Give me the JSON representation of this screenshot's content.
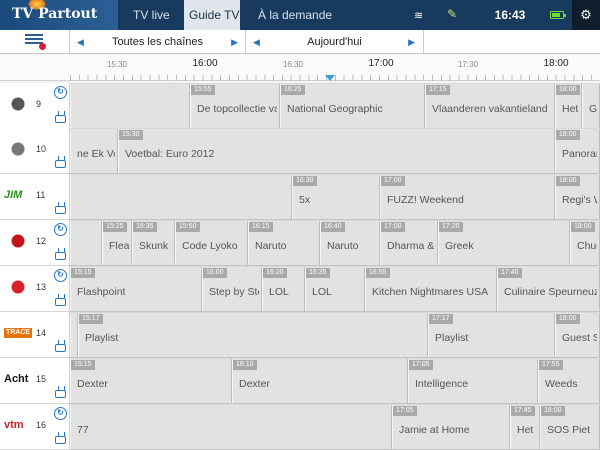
{
  "app": {
    "logo_text": "TV Partout"
  },
  "nav": {
    "tabs": [
      {
        "label": "TV live"
      },
      {
        "label": "Guide TV"
      },
      {
        "label": "À la demande"
      }
    ]
  },
  "status": {
    "time": "16:43",
    "battery_level": 0.8
  },
  "filters": {
    "channel_filter": "Toutes les chaînes",
    "day_filter": "Aujourd'hui"
  },
  "timeline": {
    "labels": [
      "15:30",
      "16:00",
      "16:30",
      "17:00",
      "17:30",
      "18:00"
    ]
  },
  "channels": [
    {
      "number": "9",
      "logo": "channel-logo-9",
      "logo_color": "#555555",
      "icon": "replay",
      "programs": [
        {
          "time": "",
          "title": ""
        },
        {
          "time": "15:55",
          "title": "De topcollectie van"
        },
        {
          "time": "16:25",
          "title": "National Geographic"
        },
        {
          "time": "17:15",
          "title": "Vlaanderen vakantieland"
        },
        {
          "time": "18:00",
          "title": "Het jo"
        },
        {
          "time": "",
          "title": "Ge"
        }
      ]
    },
    {
      "number": "10",
      "logo": "channel-logo-10",
      "logo_color": "#777777",
      "icon": "tv",
      "programs": [
        {
          "time": "",
          "title": "ne Ek Voet"
        },
        {
          "time": "15:30",
          "title": "Voetbal: Euro 2012"
        },
        {
          "time": "18:00",
          "title": "Panorama"
        }
      ]
    },
    {
      "number": "11",
      "logo": "JIM",
      "logo_color": "#2a8f1a",
      "icon": "",
      "programs": [
        {
          "time": "",
          "title": ""
        },
        {
          "time": "16:30",
          "title": "5x"
        },
        {
          "time": "17:00",
          "title": "FUZZ! Weekend"
        },
        {
          "time": "18:00",
          "title": "Regi's W"
        }
      ]
    },
    {
      "number": "12",
      "logo": "channel-logo-12",
      "logo_color": "#c0161c",
      "icon": "replay",
      "programs": [
        {
          "time": "",
          "title": ""
        },
        {
          "time": "15:25",
          "title": "Flea-"
        },
        {
          "time": "15:35",
          "title": "Skunk F"
        },
        {
          "time": "15:50",
          "title": "Code Lyoko"
        },
        {
          "time": "16:15",
          "title": "Naruto"
        },
        {
          "time": "16:40",
          "title": "Naruto"
        },
        {
          "time": "17:00",
          "title": "Dharma &"
        },
        {
          "time": "17:20",
          "title": "Greek"
        },
        {
          "time": "18:00",
          "title": "Chuck"
        }
      ]
    },
    {
      "number": "13",
      "logo": "channel-logo-13",
      "logo_color": "#d8222a",
      "icon": "replay",
      "programs": [
        {
          "time": "15:15",
          "title": "Flashpoint"
        },
        {
          "time": "16:00",
          "title": "Step by Ste"
        },
        {
          "time": "16:20",
          "title": "LOL"
        },
        {
          "time": "16:35",
          "title": "LOL"
        },
        {
          "time": "16:55",
          "title": "Kitchen Nightmares USA"
        },
        {
          "time": "17:40",
          "title": "Culinaire Speurneuz"
        }
      ]
    },
    {
      "number": "14",
      "logo": "TRACE",
      "logo_color": "#e8730c",
      "icon": "tv",
      "programs": [
        {
          "time": "",
          "title": ""
        },
        {
          "time": "15:17",
          "title": "Playlist"
        },
        {
          "time": "17:17",
          "title": "Playlist"
        },
        {
          "time": "18:00",
          "title": "Guest S"
        }
      ]
    },
    {
      "number": "15",
      "logo": "Acht",
      "logo_color": "#111111",
      "icon": "tv",
      "programs": [
        {
          "time": "15:15",
          "title": "Dexter"
        },
        {
          "time": "16:10",
          "title": "Dexter"
        },
        {
          "time": "17:05",
          "title": "Intelligence"
        },
        {
          "time": "17:55",
          "title": "Weeds"
        }
      ]
    },
    {
      "number": "16",
      "logo": "vtm",
      "logo_color": "#d0202e",
      "icon": "replay",
      "programs": [
        {
          "time": "",
          "title": "77"
        },
        {
          "time": "17:05",
          "title": "Jamie at Home"
        },
        {
          "time": "17:45",
          "title": "Het r"
        },
        {
          "time": "18:00",
          "title": "SOS Piet"
        }
      ]
    }
  ]
}
